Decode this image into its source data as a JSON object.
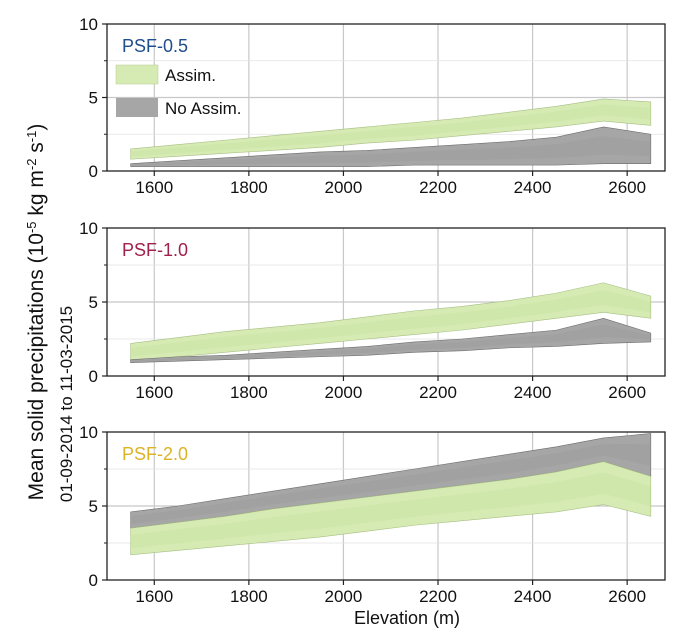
{
  "figure": {
    "ylabel_main": "Mean solid precipitations (10",
    "ylabel_exp1": "-5",
    "ylabel_mid": " kg m",
    "ylabel_exp2": "-2",
    "ylabel_mid2": " s",
    "ylabel_exp3": "-1",
    "ylabel_end": ")",
    "ylabel_period": "01-09-2014 to 11-03-2015",
    "xlabel": "Elevation (m)"
  },
  "legend": {
    "assim_label": "Assim.",
    "noassim_label": "No Assim."
  },
  "colors": {
    "assim_fill": "#d6ebb3",
    "assim_core": "#c4e09a",
    "noassim_fill": "#a6a6a6",
    "noassim_core": "#999999",
    "grid": "#c8c8c8",
    "psf05": "#1f4e8c",
    "psf10": "#a0204c",
    "psf20": "#dcb326"
  },
  "chart_data": [
    {
      "type": "area",
      "panel_label": "PSF-0.5",
      "x": [
        1550,
        1650,
        1750,
        1850,
        1950,
        2050,
        2150,
        2250,
        2350,
        2450,
        2550,
        2650
      ],
      "xticks": [
        1600,
        1800,
        2000,
        2200,
        2400,
        2600
      ],
      "xticklabels": [
        "1600",
        "1800",
        "2000",
        "2200",
        "2400",
        "2600"
      ],
      "yticks": [
        0,
        5,
        10
      ],
      "yticklabels": [
        "0",
        "5",
        "10"
      ],
      "xlim": [
        1500,
        2680
      ],
      "ylim": [
        0,
        10
      ],
      "grid": true,
      "series": [
        {
          "name": "Assim.",
          "lower": [
            0.8,
            1.0,
            1.2,
            1.4,
            1.6,
            1.9,
            2.1,
            2.4,
            2.7,
            3.0,
            3.4,
            3.1
          ],
          "upper": [
            1.5,
            1.8,
            2.1,
            2.4,
            2.7,
            3.0,
            3.3,
            3.6,
            4.0,
            4.4,
            4.9,
            4.7
          ]
        },
        {
          "name": "No Assim.",
          "lower": [
            0.3,
            0.3,
            0.3,
            0.3,
            0.3,
            0.3,
            0.4,
            0.4,
            0.4,
            0.4,
            0.5,
            0.5
          ],
          "upper": [
            0.5,
            0.7,
            0.9,
            1.1,
            1.3,
            1.4,
            1.6,
            1.8,
            2.0,
            2.3,
            3.0,
            2.5
          ]
        }
      ]
    },
    {
      "type": "area",
      "panel_label": "PSF-1.0",
      "x": [
        1550,
        1650,
        1750,
        1850,
        1950,
        2050,
        2150,
        2250,
        2350,
        2450,
        2550,
        2650
      ],
      "xticks": [
        1600,
        1800,
        2000,
        2200,
        2400,
        2600
      ],
      "xticklabels": [
        "1600",
        "1800",
        "2000",
        "2200",
        "2400",
        "2600"
      ],
      "yticks": [
        0,
        5,
        10
      ],
      "yticklabels": [
        "0",
        "5",
        "10"
      ],
      "xlim": [
        1500,
        2680
      ],
      "ylim": [
        0,
        10
      ],
      "grid": true,
      "series": [
        {
          "name": "Assim.",
          "lower": [
            1.0,
            1.3,
            1.6,
            1.9,
            2.2,
            2.5,
            2.8,
            3.1,
            3.5,
            3.9,
            4.3,
            3.9
          ],
          "upper": [
            2.2,
            2.6,
            3.0,
            3.3,
            3.6,
            4.0,
            4.4,
            4.7,
            5.1,
            5.6,
            6.3,
            5.4
          ]
        },
        {
          "name": "No Assim.",
          "lower": [
            0.9,
            1.0,
            1.1,
            1.2,
            1.3,
            1.4,
            1.6,
            1.7,
            1.9,
            2.0,
            2.2,
            2.3
          ],
          "upper": [
            1.1,
            1.3,
            1.4,
            1.6,
            1.8,
            2.0,
            2.3,
            2.5,
            2.8,
            3.1,
            3.9,
            2.9
          ]
        }
      ]
    },
    {
      "type": "area",
      "panel_label": "PSF-2.0",
      "x": [
        1550,
        1650,
        1750,
        1850,
        1950,
        2050,
        2150,
        2250,
        2350,
        2450,
        2550,
        2650
      ],
      "xticks": [
        1600,
        1800,
        2000,
        2200,
        2400,
        2600
      ],
      "xticklabels": [
        "1600",
        "1800",
        "2000",
        "2200",
        "2400",
        "2600"
      ],
      "yticks": [
        0,
        5,
        10
      ],
      "yticklabels": [
        "0",
        "5",
        "10"
      ],
      "xlim": [
        1500,
        2680
      ],
      "ylim": [
        0,
        10
      ],
      "grid": true,
      "series": [
        {
          "name": "No Assim.",
          "lower": [
            3.5,
            3.9,
            4.3,
            4.8,
            5.2,
            5.6,
            6.0,
            6.4,
            6.8,
            7.3,
            8.0,
            7.0
          ],
          "upper": [
            4.6,
            5.0,
            5.5,
            6.0,
            6.5,
            7.0,
            7.5,
            8.0,
            8.5,
            9.0,
            9.6,
            9.9
          ]
        },
        {
          "name": "Assim.",
          "lower": [
            1.7,
            2.0,
            2.3,
            2.6,
            2.9,
            3.3,
            3.7,
            4.0,
            4.3,
            4.6,
            5.1,
            4.3
          ],
          "upper": [
            3.5,
            3.9,
            4.3,
            4.8,
            5.2,
            5.6,
            6.0,
            6.4,
            6.8,
            7.3,
            8.0,
            7.0
          ]
        }
      ]
    }
  ]
}
